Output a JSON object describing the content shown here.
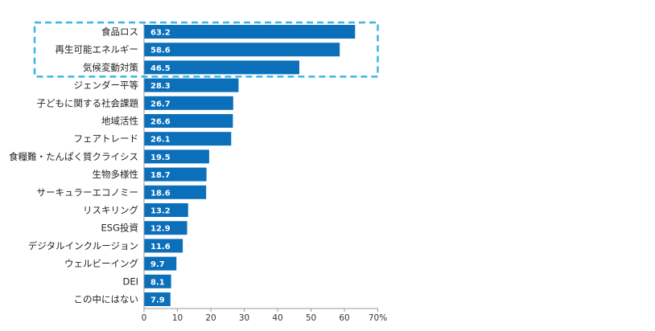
{
  "chart_data": {
    "type": "bar",
    "orientation": "horizontal",
    "categories": [
      "食品ロス",
      "再生可能エネルギー",
      "気候変動対策",
      "ジェンダー平等",
      "子どもに関する社会課題",
      "地域活性",
      "フェアトレード",
      "食糧難・たんぱく質クライシス",
      "生物多様性",
      "サーキュラーエコノミー",
      "リスキリング",
      "ESG投資",
      "デジタルインクルージョン",
      "ウェルビーイング",
      "DEI",
      "この中にはない"
    ],
    "values": [
      63.2,
      58.6,
      46.5,
      28.3,
      26.7,
      26.6,
      26.1,
      19.5,
      18.7,
      18.6,
      13.2,
      12.9,
      11.6,
      9.7,
      8.1,
      7.9
    ],
    "value_labels": [
      "63.2",
      "58.6",
      "46.5",
      "28.3",
      "26.7",
      "26.6",
      "26.1",
      "19.5",
      "18.7",
      "18.6",
      "13.2",
      "12.9",
      "11.6",
      "9.7",
      "8.1",
      "7.9"
    ],
    "xlim": [
      0,
      70
    ],
    "ticks": [
      0,
      10,
      20,
      30,
      40,
      50,
      60,
      70
    ],
    "tick_labels": [
      "0",
      "10",
      "20",
      "30",
      "40",
      "50",
      "60",
      "70%"
    ],
    "highlighted_categories": [
      "食品ロス",
      "再生可能エネルギー",
      "気候変動対策"
    ],
    "colors": {
      "bar": "#0b6fba",
      "highlight_border": "#3ab6e6",
      "axis": "#999999"
    },
    "title": "",
    "xlabel": "",
    "ylabel": "",
    "grid": false,
    "legend": "none"
  }
}
